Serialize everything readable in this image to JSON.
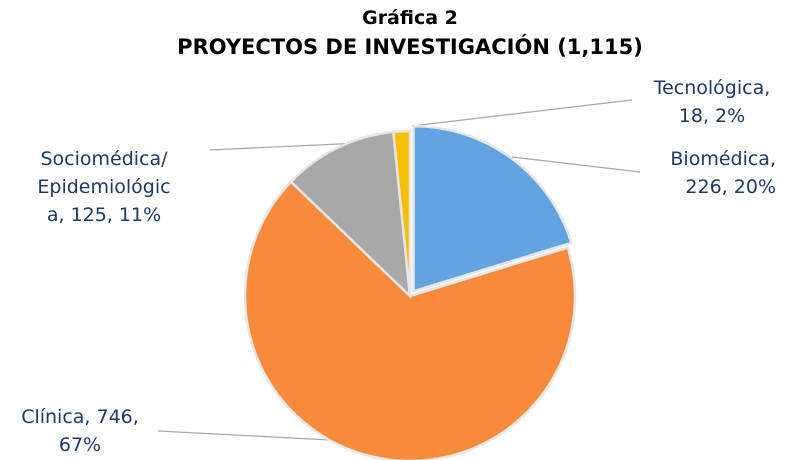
{
  "chart_data": {
    "type": "pie",
    "title": "Gráfica 2",
    "subtitle": "PROYECTOS DE INVESTIGACIÓN (1,115)",
    "categories": [
      "Biomédica",
      "Clínica",
      "Sociomédica/Epidemiológica",
      "Tecnológica"
    ],
    "values": [
      226,
      746,
      125,
      18
    ],
    "colors": [
      "#62a3e2",
      "#f78b3c",
      "#a8a8a8",
      "#f5c000"
    ],
    "labels": [
      [
        "Biomédica,",
        "226, 20%"
      ],
      [
        "Clínica, 746,",
        "67%"
      ],
      [
        "Sociomédica/",
        "Epidemiológic",
        "a, 125, 11%"
      ],
      [
        "Tecnológica,",
        "18, 2%"
      ]
    ]
  }
}
